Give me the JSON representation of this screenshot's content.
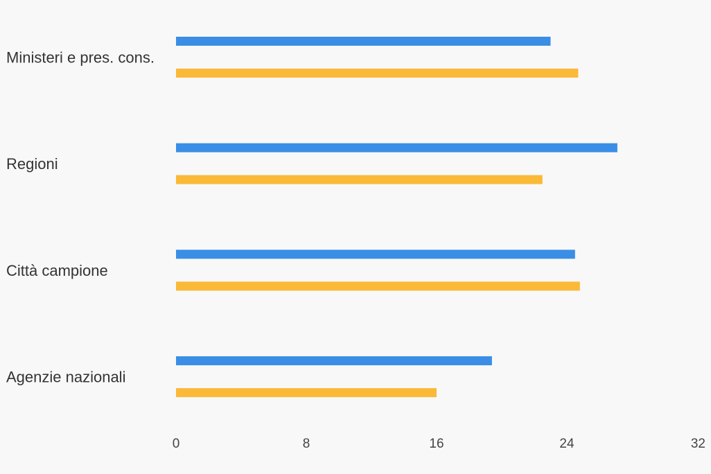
{
  "chart_data": {
    "type": "bar",
    "orientation": "horizontal",
    "categories": [
      "Ministeri e pres. cons.",
      "Regioni",
      "Città campione",
      "Agenzie nazionali"
    ],
    "series": [
      {
        "values": [
          23.0,
          27.1,
          24.5,
          19.4
        ],
        "color": "#3a8ee6"
      },
      {
        "values": [
          24.7,
          22.5,
          24.8,
          16.0
        ],
        "color": "#fbb938"
      }
    ],
    "xlim": [
      0,
      32
    ],
    "xticks": [
      "0",
      "8",
      "16",
      "24",
      "32"
    ],
    "grid": false,
    "legend": "none"
  }
}
